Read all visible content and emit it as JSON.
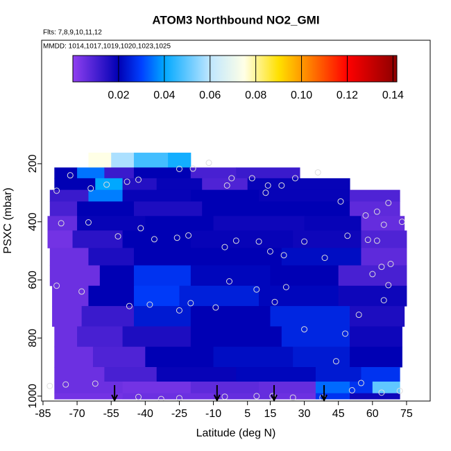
{
  "chart_data": {
    "type": "curtain",
    "title": "ATOM3 Northbound NO2_GMI",
    "flights": "Flts: 7,8,9,10,11,12",
    "dates": "MMDD: 1014,1017,1019,1020,1023,1025",
    "x_label": "Latitude (deg N)",
    "y_label": "PSXC (mbar)",
    "xlim": [
      -85.6,
      85.4
    ],
    "xticks": [
      -85,
      -70,
      -55,
      -40,
      -25,
      -10,
      5,
      15,
      30,
      45,
      60,
      75
    ],
    "ylim": [
      -225,
      1017
    ],
    "yticks": [
      200,
      400,
      600,
      800,
      1000
    ],
    "colorbar_lim": [
      0,
      0.1417
    ],
    "colorbar_ticks": [
      0.02,
      0.04,
      0.06,
      0.08,
      {
        "value": 0.1,
        "label": "0.10"
      },
      0.12,
      0.14
    ],
    "colorscale": [
      [
        0,
        "#9040f0"
      ],
      [
        0.02,
        "#0000b4"
      ],
      [
        0.03,
        "#0040ff"
      ],
      [
        0.04,
        "#00a8ff"
      ],
      [
        0.06,
        "#bfe6ff"
      ],
      [
        0.075,
        "#ffffe6"
      ],
      [
        0.09,
        "#ffe000"
      ],
      [
        0.1,
        "#ff9a00"
      ],
      [
        0.12,
        "#ff0000"
      ],
      [
        0.1417,
        "#8b0000"
      ]
    ],
    "pressure_edges": [
      162,
      213,
      250,
      290,
      330,
      380,
      430,
      490,
      550,
      620,
      690,
      760,
      830,
      900,
      950,
      990,
      1010
    ],
    "rows": [
      {
        "lat_edges": [
          -65,
          -55,
          -45,
          -30,
          -20
        ],
        "values": [
          0.075,
          0.058,
          0.047,
          0.042
        ]
      },
      {
        "lat_edges": [
          -80,
          -70,
          -58,
          -45,
          -20,
          0,
          28
        ],
        "values": [
          0.02,
          0.035,
          0.012,
          0.02,
          0.01,
          0.012
        ]
      },
      {
        "lat_edges": [
          -80,
          -62,
          -50,
          -35,
          -15,
          5,
          50
        ],
        "values": [
          0.02,
          0.04,
          0.015,
          0.019,
          0.009,
          0.019
        ]
      },
      {
        "lat_edges": [
          -82,
          -65,
          -50,
          -20,
          10,
          50,
          72
        ],
        "values": [
          0.012,
          0.036,
          0.019,
          0.02,
          0.019,
          0.009
        ]
      },
      {
        "lat_edges": [
          -82,
          -70,
          -45,
          -15,
          20,
          50,
          72
        ],
        "values": [
          0.01,
          0.02,
          0.016,
          0.02,
          0.02,
          0.007
        ]
      },
      {
        "lat_edges": [
          -83,
          -70,
          -40,
          -10,
          30,
          55,
          74
        ],
        "values": [
          0.006,
          0.019,
          0.02,
          0.018,
          0.019,
          0.006
        ]
      },
      {
        "lat_edges": [
          -83,
          -72,
          -50,
          -20,
          25,
          55,
          75
        ],
        "values": [
          0.004,
          0.014,
          0.02,
          0.019,
          0.018,
          0.009
        ]
      },
      {
        "lat_edges": [
          -82,
          -65,
          -45,
          -15,
          20,
          55,
          75
        ],
        "values": [
          0.005,
          0.016,
          0.02,
          0.02,
          0.022,
          0.007
        ]
      },
      {
        "lat_edges": [
          -82,
          -60,
          -45,
          -20,
          15,
          45,
          75
        ],
        "values": [
          0.005,
          0.02,
          0.028,
          0.021,
          0.02,
          0.01
        ]
      },
      {
        "lat_edges": [
          -81,
          -65,
          -45,
          -25,
          10,
          45,
          75
        ],
        "values": [
          0.005,
          0.02,
          0.029,
          0.025,
          0.021,
          0.018
        ]
      },
      {
        "lat_edges": [
          -81,
          -68,
          -45,
          -20,
          15,
          50,
          74
        ],
        "values": [
          0.005,
          0.012,
          0.024,
          0.02,
          0.026,
          0.016
        ]
      },
      {
        "lat_edges": [
          -80,
          -70,
          -50,
          -20,
          20,
          50,
          73
        ],
        "values": [
          0.005,
          0.01,
          0.016,
          0.02,
          0.026,
          0.018
        ]
      },
      {
        "lat_edges": [
          -80,
          -63,
          -40,
          -10,
          25,
          50,
          73
        ],
        "values": [
          0.005,
          0.009,
          0.02,
          0.022,
          0.024,
          0.02
        ]
      },
      {
        "lat_edges": [
          -80,
          -58,
          -35,
          0,
          35,
          55,
          72
        ],
        "values": [
          0.005,
          0.01,
          0.019,
          0.021,
          0.024,
          0.028
        ]
      },
      {
        "lat_edges": [
          -80,
          -50,
          -20,
          10,
          35,
          50,
          60,
          72
        ],
        "values": [
          0.005,
          0.004,
          0.007,
          0.006,
          0.034,
          0.028,
          0.05
        ]
      },
      {
        "lat_edges": [
          -80,
          -50,
          -10,
          15,
          35,
          50,
          72
        ],
        "values": [
          0.004,
          0.005,
          0.006,
          0.005,
          0.028,
          0.018
        ]
      }
    ],
    "samples": {
      "x": [
        -73,
        -64,
        -57,
        -48,
        -43,
        -25,
        -19,
        -12,
        -2,
        -4,
        7,
        14,
        13,
        20,
        26,
        36,
        46,
        57,
        62,
        67,
        65,
        73,
        -79,
        -77,
        -65,
        -42,
        -52,
        -36,
        -26,
        -21,
        -5,
        0,
        10,
        15,
        21,
        30,
        39,
        49,
        58,
        62,
        64,
        68,
        60,
        -79,
        -68,
        -47,
        -38,
        -25,
        -20,
        -9,
        -3,
        9,
        17,
        22,
        30,
        48,
        54,
        65,
        67,
        44,
        -82,
        -75,
        -62,
        -43,
        -33,
        -25,
        -5,
        9,
        16,
        25,
        38,
        51,
        55,
        64,
        72
      ],
      "y": [
        240,
        285,
        272,
        262,
        255,
        218,
        217,
        197,
        250,
        275,
        250,
        275,
        300,
        275,
        250,
        230,
        330,
        378,
        365,
        335,
        410,
        400,
        293,
        405,
        402,
        422,
        450,
        460,
        455,
        447,
        487,
        465,
        468,
        502,
        515,
        468,
        524,
        448,
        462,
        465,
        555,
        545,
        580,
        620,
        640,
        690,
        685,
        705,
        680,
        695,
        605,
        633,
        676,
        625,
        770,
        785,
        720,
        670,
        618,
        880,
        965,
        960,
        957,
        1003,
        1010,
        1007,
        1002,
        1000,
        1000,
        1005,
        1005,
        980,
        955,
        988,
        982
      ]
    },
    "arrows_lat": [
      -53.5,
      -8.4,
      16.7,
      38.7
    ]
  }
}
